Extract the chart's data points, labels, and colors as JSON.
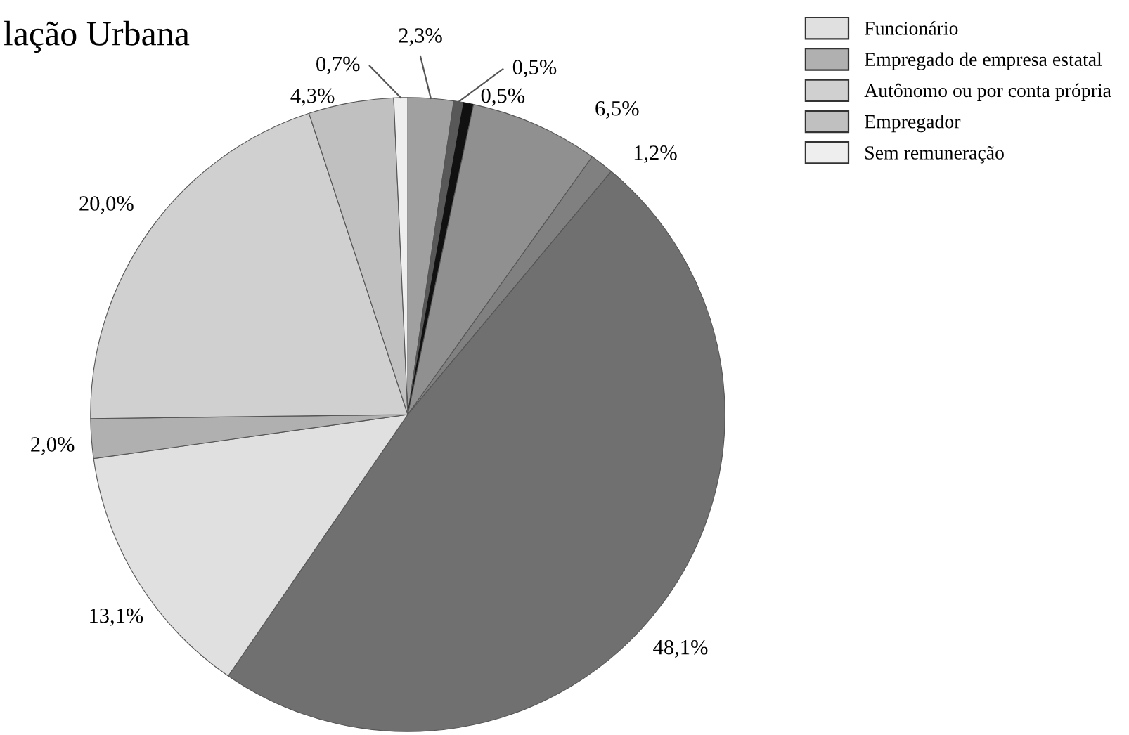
{
  "chart_data": {
    "type": "pie",
    "title": "lação Urbana",
    "categories": [
      null,
      null,
      null,
      null,
      null,
      null,
      "Funcionário",
      "Empregado de empresa estatal",
      "Autônomo ou por conta própria",
      "Empregador",
      "Sem remuneração"
    ],
    "values": [
      2.3,
      0.5,
      0.5,
      6.5,
      1.2,
      48.1,
      13.1,
      2.0,
      20.0,
      4.3,
      0.7
    ],
    "value_labels": [
      "2,3%",
      "0,5%",
      "0,5%",
      "6,5%",
      "1,2%",
      "48,1%",
      "13,1%",
      "2,0%",
      "20,0%",
      "4,3%",
      "0,7%"
    ],
    "colors": [
      "#a0a0a0",
      "#585858",
      "#111111",
      "#909090",
      "#808080",
      "#707070",
      "#e0e0e0",
      "#b0b0b0",
      "#d0d0d0",
      "#c0c0c0",
      "#eeeeee"
    ],
    "legend": "top right"
  }
}
